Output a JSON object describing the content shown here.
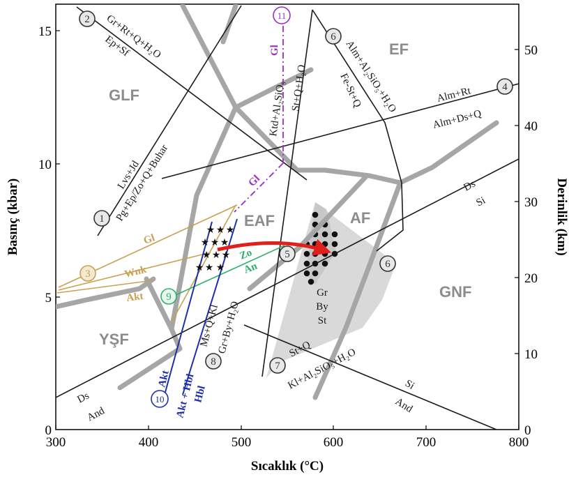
{
  "axes": {
    "xlabel": "Sıcaklık (°C)",
    "ylabel_left": "Basınç (kbar)",
    "ylabel_right": "Derinlik (km)",
    "xlim": [
      300,
      800
    ],
    "ylim_pressure": [
      0,
      16
    ],
    "ylim_depth": [
      0,
      56
    ],
    "x_ticks": [
      "300",
      "400",
      "500",
      "600",
      "700",
      "800"
    ],
    "y_ticks_left": [
      "0",
      "5",
      "10",
      "15"
    ],
    "y_ticks_right": [
      "0",
      "10",
      "20",
      "30",
      "40",
      "50"
    ]
  },
  "facies": {
    "glf": "GLF",
    "ef": "EF",
    "eaf": "EAF",
    "af": "AF",
    "gnf": "GNF",
    "ysf": "YŞF"
  },
  "reactions": {
    "r1": {
      "num": "1",
      "upper": "Lvs+Jd",
      "lower": "Pg+Ep/Zo+Q+Buhar"
    },
    "r2": {
      "num": "2",
      "upper": "Gr+Rt+Q+H₂O",
      "lower": "Ep+Sf"
    },
    "r3": {
      "num": "3",
      "gl": "Gl",
      "wnk": "Wnk",
      "akt": "Akt"
    },
    "r4": {
      "num": "4",
      "upper": "Alm+Rt",
      "lower": "Alm+Ds+Q"
    },
    "r5": {
      "num": "5",
      "upper": "Ktd+Al₂SiO₅",
      "lower": "St+Q+H₂O"
    },
    "r6": {
      "num": "6",
      "upper": "Alm+Al₂SiO₅+H₂O",
      "lower": "Fe-St+Q"
    },
    "r7": {
      "num": "7",
      "upper": "St+Q",
      "lower": "Kl+Al₂SiO₅+H₂O"
    },
    "r8": {
      "num": "8",
      "upper": "Ms+Q+Kl",
      "lower": "Gr+By+H₂O"
    },
    "r9": {
      "num": "9",
      "upper": "Zo",
      "lower": "An"
    },
    "r10": {
      "num": "10",
      "a": "Akt",
      "b": "Akt + Hbl",
      "c": "Hbl"
    },
    "r11": {
      "num": "11",
      "gl": "Gl"
    },
    "ds_si": {
      "upper": "Ds",
      "lower": "Si"
    },
    "ds_and": {
      "upper": "Ds",
      "lower": "And"
    },
    "si_and": {
      "upper": "Si",
      "lower": "And"
    },
    "gl_mid": "Gl",
    "assemblage": [
      "Gr",
      "By",
      "St"
    ]
  },
  "colors": {
    "facies_boundary": "#a6a6a6",
    "reaction_line": "#1a1a1a",
    "reaction3": "#c8a050",
    "reaction9": "#2db06a",
    "reaction10": "#1f2fa8",
    "reaction11": "#9a2fbf",
    "field_shade": "#d9d9d9",
    "path_arrow": "#e0201a"
  }
}
